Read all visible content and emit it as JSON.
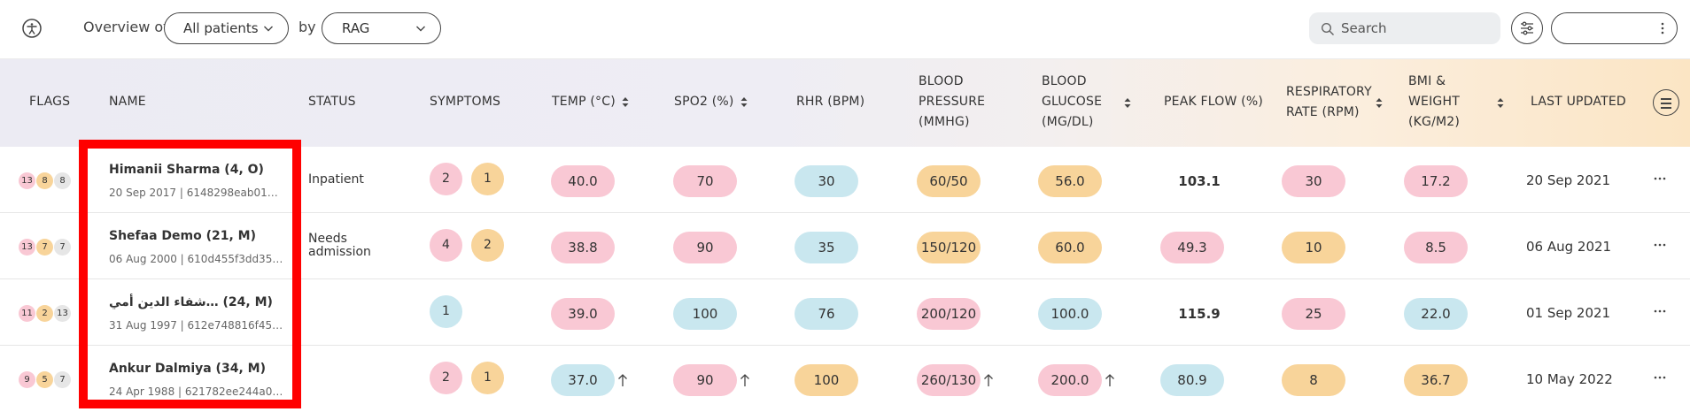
{
  "toolbar": {
    "overview_label": "Overview of",
    "patients_select": "All patients",
    "by_label": "by",
    "group_select": "RAG",
    "search_placeholder": "Search",
    "right_pill_label": ""
  },
  "columns": {
    "flags": "FLAGS",
    "name": "NAME",
    "status": "STATUS",
    "symptoms": "SYMPTOMS",
    "temp": "TEMP (°C)",
    "spo2": "SPO2 (%)",
    "rhr": "RHR (BPM)",
    "bp": [
      "BLOOD",
      "PRESSURE",
      "(MMHG)"
    ],
    "glucose": [
      "BLOOD",
      "GLUCOSE",
      "(MG/DL)"
    ],
    "peak_flow": "PEAK FLOW (%)",
    "resp": [
      "RESPIRATORY",
      "RATE (RPM)"
    ],
    "bmi": [
      "BMI &",
      "WEIGHT",
      "(KG/M2)"
    ],
    "last_updated": "LAST UPDATED"
  },
  "rows": [
    {
      "flags": [
        "13",
        "8",
        "8"
      ],
      "name": "Himanii Sharma (4, O)",
      "meta": "20 Sep 2017 | 6148298eab0174…",
      "status": [
        "Inpatient"
      ],
      "symptoms": [
        "2",
        "1"
      ],
      "temp": "40.0",
      "spo2": "70",
      "rhr": "30",
      "bp": "60/50",
      "glucose": "56.0",
      "peak_flow": "103.1",
      "resp": "30",
      "bmi": "17.2",
      "updated": "20 Sep 2021"
    },
    {
      "flags": [
        "13",
        "7",
        "7"
      ],
      "name": "Shefaa Demo (21, M)",
      "meta": "06 Aug 2000 | 610d455f3dd35f…",
      "status": [
        "Needs",
        "admission"
      ],
      "symptoms": [
        "4",
        "2"
      ],
      "temp": "38.8",
      "spo2": "90",
      "rhr": "35",
      "bp": "150/120",
      "glucose": "60.0",
      "peak_flow": "49.3",
      "resp": "10",
      "bmi": "8.5",
      "updated": "06 Aug 2021"
    },
    {
      "flags": [
        "11",
        "2",
        "13"
      ],
      "name": "شفاء الدين أمي… (24, M)",
      "meta": "31 Aug 1997 | 612e748816f45e…",
      "status": [],
      "symptoms": [
        "1"
      ],
      "temp": "39.0",
      "spo2": "100",
      "rhr": "76",
      "bp": "200/120",
      "glucose": "100.0",
      "peak_flow": "115.9",
      "resp": "25",
      "bmi": "22.0",
      "updated": "01 Sep 2021"
    },
    {
      "flags": [
        "9",
        "5",
        "7"
      ],
      "name": "Ankur Dalmiya (34, M)",
      "meta": "24 Apr 1988 | 621782ee244a09…",
      "status": [],
      "symptoms": [
        "2",
        "1"
      ],
      "temp": "37.0",
      "spo2": "90",
      "rhr": "100",
      "bp": "260/130",
      "glucose": "200.0",
      "peak_flow": "80.9",
      "resp": "8",
      "bmi": "36.7",
      "updated": "10 May 2022"
    }
  ],
  "colors": {
    "red": "#f9c8d4",
    "amber": "#f8d49a",
    "blue": "#c9e7ef",
    "grey": "#e6e6e6",
    "highlight": "#ff0000"
  },
  "icons": [
    "accessibility-icon",
    "chevron-down-icon",
    "search-icon",
    "filter-sliders-icon",
    "kebab-icon",
    "sort-icon",
    "menu-icon",
    "arrow-up-icon"
  ]
}
